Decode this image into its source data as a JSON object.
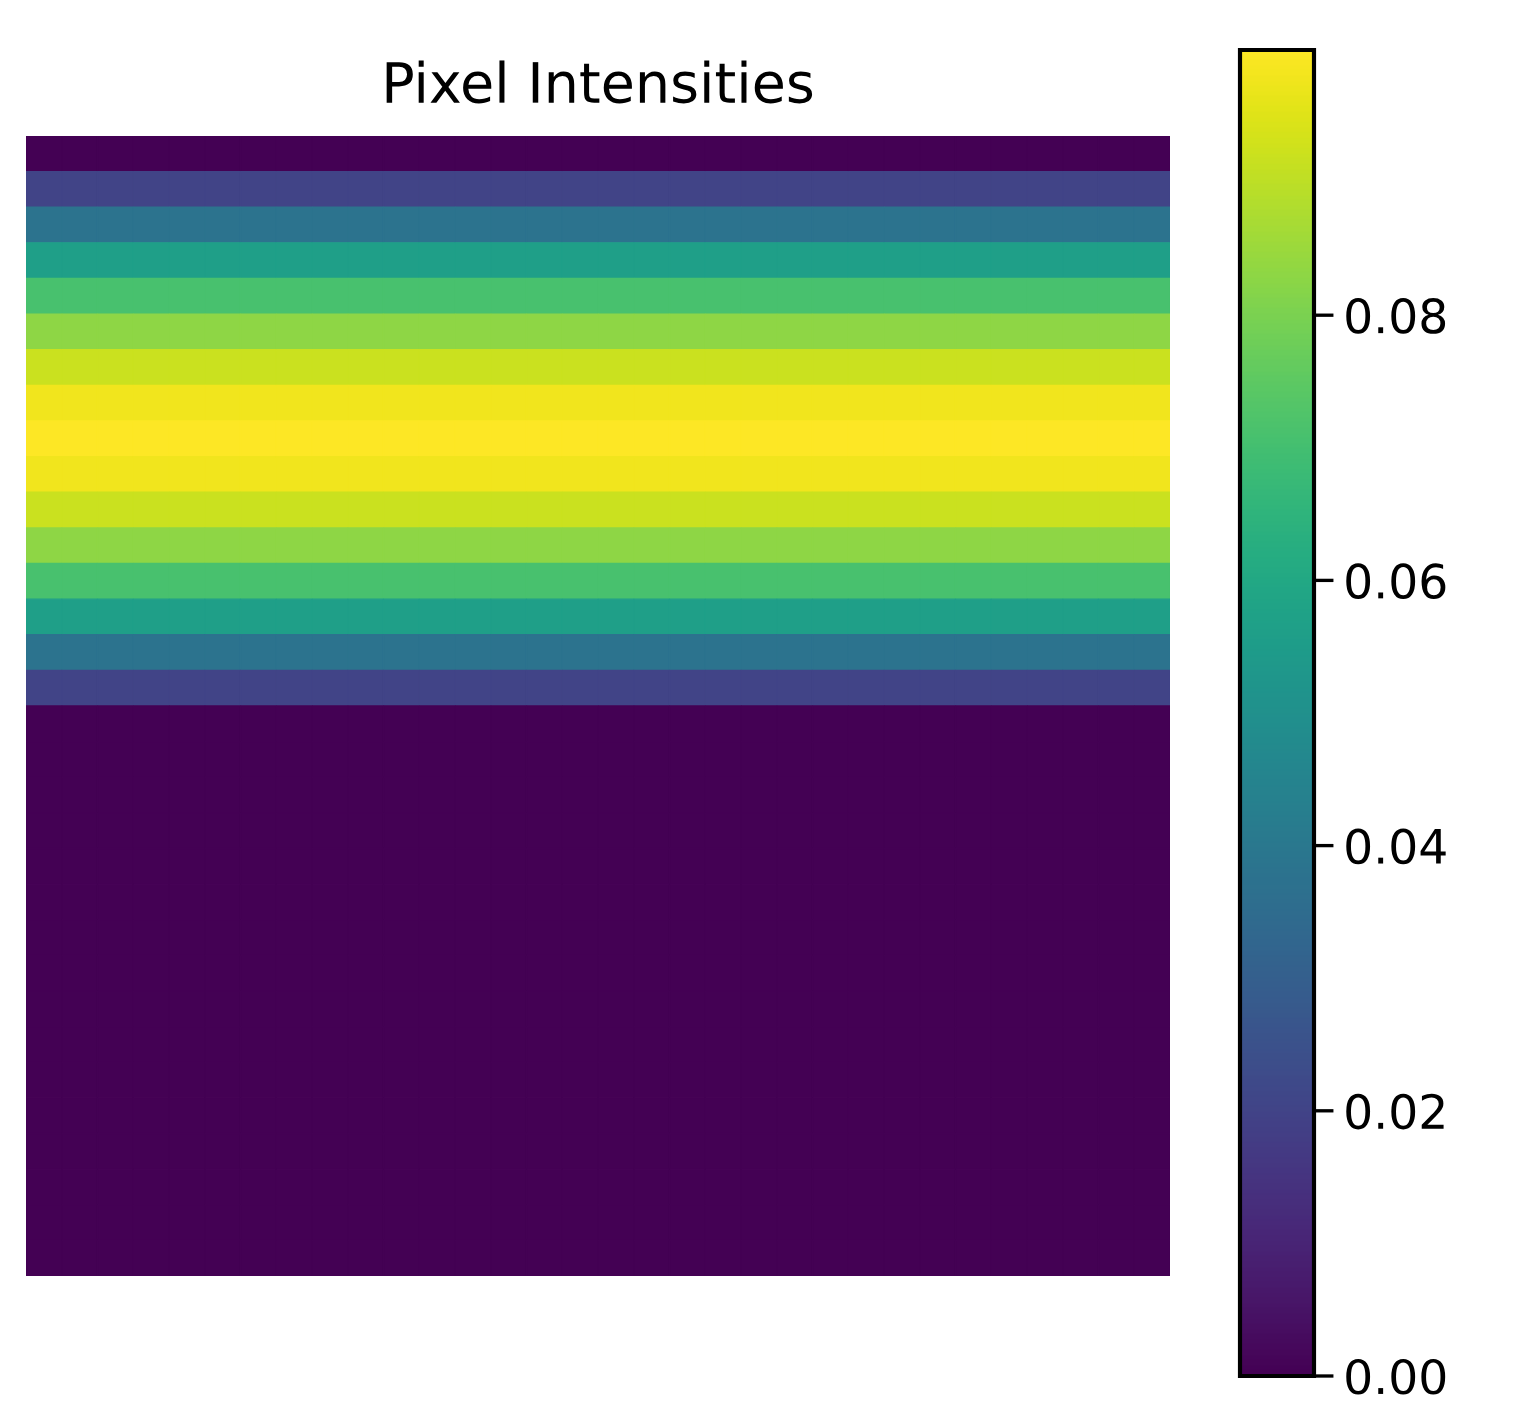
{
  "chart_data": {
    "type": "heatmap",
    "title": "Pixel Intensities",
    "categories": [
      null,
      null,
      null,
      null,
      null,
      null,
      null,
      null,
      null,
      null,
      null,
      null,
      null,
      null,
      null,
      null,
      null,
      null,
      null,
      null,
      null,
      null,
      null,
      null,
      null,
      null,
      null,
      null,
      null,
      null,
      null,
      null
    ],
    "y_categories": [
      null,
      null,
      null,
      null,
      null,
      null,
      null,
      null,
      null,
      null,
      null,
      null,
      null,
      null,
      null,
      null,
      null,
      null,
      null,
      null,
      null,
      null,
      null,
      null,
      null,
      null,
      null,
      null,
      null,
      null,
      null,
      null
    ],
    "cells": [
      [
        0,
        0,
        0,
        0,
        0,
        0,
        0,
        0,
        0,
        0,
        0,
        0,
        0,
        0,
        0,
        0,
        0,
        0,
        0,
        0,
        0,
        0,
        0,
        0,
        0,
        0,
        0,
        0,
        0,
        0,
        0,
        0
      ],
      [
        0.02,
        0.02,
        0.02,
        0.02,
        0.02,
        0.02,
        0.02,
        0.02,
        0.02,
        0.02,
        0.02,
        0.02,
        0.02,
        0.02,
        0.02,
        0.02,
        0.02,
        0.02,
        0.02,
        0.02,
        0.02,
        0.02,
        0.02,
        0.02,
        0.02,
        0.02,
        0.02,
        0.02,
        0.02,
        0.02,
        0.02,
        0.02
      ],
      [
        0.038,
        0.038,
        0.038,
        0.038,
        0.038,
        0.038,
        0.038,
        0.038,
        0.038,
        0.038,
        0.038,
        0.038,
        0.038,
        0.038,
        0.038,
        0.038,
        0.038,
        0.038,
        0.038,
        0.038,
        0.038,
        0.038,
        0.038,
        0.038,
        0.038,
        0.038,
        0.038,
        0.038,
        0.038,
        0.038,
        0.038,
        0.038
      ],
      [
        0.056,
        0.056,
        0.056,
        0.056,
        0.056,
        0.056,
        0.056,
        0.056,
        0.056,
        0.056,
        0.056,
        0.056,
        0.056,
        0.056,
        0.056,
        0.056,
        0.056,
        0.056,
        0.056,
        0.056,
        0.056,
        0.056,
        0.056,
        0.056,
        0.056,
        0.056,
        0.056,
        0.056,
        0.056,
        0.056,
        0.056,
        0.056
      ],
      [
        0.071,
        0.071,
        0.071,
        0.071,
        0.071,
        0.071,
        0.071,
        0.071,
        0.071,
        0.071,
        0.071,
        0.071,
        0.071,
        0.071,
        0.071,
        0.071,
        0.071,
        0.071,
        0.071,
        0.071,
        0.071,
        0.071,
        0.071,
        0.071,
        0.071,
        0.071,
        0.071,
        0.071,
        0.071,
        0.071,
        0.071,
        0.071
      ],
      [
        0.083,
        0.083,
        0.083,
        0.083,
        0.083,
        0.083,
        0.083,
        0.083,
        0.083,
        0.083,
        0.083,
        0.083,
        0.083,
        0.083,
        0.083,
        0.083,
        0.083,
        0.083,
        0.083,
        0.083,
        0.083,
        0.083,
        0.083,
        0.083,
        0.083,
        0.083,
        0.083,
        0.083,
        0.083,
        0.083,
        0.083,
        0.083
      ],
      [
        0.092,
        0.092,
        0.092,
        0.092,
        0.092,
        0.092,
        0.092,
        0.092,
        0.092,
        0.092,
        0.092,
        0.092,
        0.092,
        0.092,
        0.092,
        0.092,
        0.092,
        0.092,
        0.092,
        0.092,
        0.092,
        0.092,
        0.092,
        0.092,
        0.092,
        0.092,
        0.092,
        0.092,
        0.092,
        0.092,
        0.092,
        0.092
      ],
      [
        0.098,
        0.098,
        0.098,
        0.098,
        0.098,
        0.098,
        0.098,
        0.098,
        0.098,
        0.098,
        0.098,
        0.098,
        0.098,
        0.098,
        0.098,
        0.098,
        0.098,
        0.098,
        0.098,
        0.098,
        0.098,
        0.098,
        0.098,
        0.098,
        0.098,
        0.098,
        0.098,
        0.098,
        0.098,
        0.098,
        0.098,
        0.098
      ],
      [
        0.1,
        0.1,
        0.1,
        0.1,
        0.1,
        0.1,
        0.1,
        0.1,
        0.1,
        0.1,
        0.1,
        0.1,
        0.1,
        0.1,
        0.1,
        0.1,
        0.1,
        0.1,
        0.1,
        0.1,
        0.1,
        0.1,
        0.1,
        0.1,
        0.1,
        0.1,
        0.1,
        0.1,
        0.1,
        0.1,
        0.1,
        0.1
      ],
      [
        0.098,
        0.098,
        0.098,
        0.098,
        0.098,
        0.098,
        0.098,
        0.098,
        0.098,
        0.098,
        0.098,
        0.098,
        0.098,
        0.098,
        0.098,
        0.098,
        0.098,
        0.098,
        0.098,
        0.098,
        0.098,
        0.098,
        0.098,
        0.098,
        0.098,
        0.098,
        0.098,
        0.098,
        0.098,
        0.098,
        0.098,
        0.098
      ],
      [
        0.092,
        0.092,
        0.092,
        0.092,
        0.092,
        0.092,
        0.092,
        0.092,
        0.092,
        0.092,
        0.092,
        0.092,
        0.092,
        0.092,
        0.092,
        0.092,
        0.092,
        0.092,
        0.092,
        0.092,
        0.092,
        0.092,
        0.092,
        0.092,
        0.092,
        0.092,
        0.092,
        0.092,
        0.092,
        0.092,
        0.092,
        0.092
      ],
      [
        0.083,
        0.083,
        0.083,
        0.083,
        0.083,
        0.083,
        0.083,
        0.083,
        0.083,
        0.083,
        0.083,
        0.083,
        0.083,
        0.083,
        0.083,
        0.083,
        0.083,
        0.083,
        0.083,
        0.083,
        0.083,
        0.083,
        0.083,
        0.083,
        0.083,
        0.083,
        0.083,
        0.083,
        0.083,
        0.083,
        0.083,
        0.083
      ],
      [
        0.071,
        0.071,
        0.071,
        0.071,
        0.071,
        0.071,
        0.071,
        0.071,
        0.071,
        0.071,
        0.071,
        0.071,
        0.071,
        0.071,
        0.071,
        0.071,
        0.071,
        0.071,
        0.071,
        0.071,
        0.071,
        0.071,
        0.071,
        0.071,
        0.071,
        0.071,
        0.071,
        0.071,
        0.071,
        0.071,
        0.071,
        0.071
      ],
      [
        0.056,
        0.056,
        0.056,
        0.056,
        0.056,
        0.056,
        0.056,
        0.056,
        0.056,
        0.056,
        0.056,
        0.056,
        0.056,
        0.056,
        0.056,
        0.056,
        0.056,
        0.056,
        0.056,
        0.056,
        0.056,
        0.056,
        0.056,
        0.056,
        0.056,
        0.056,
        0.056,
        0.056,
        0.056,
        0.056,
        0.056,
        0.056
      ],
      [
        0.038,
        0.038,
        0.038,
        0.038,
        0.038,
        0.038,
        0.038,
        0.038,
        0.038,
        0.038,
        0.038,
        0.038,
        0.038,
        0.038,
        0.038,
        0.038,
        0.038,
        0.038,
        0.038,
        0.038,
        0.038,
        0.038,
        0.038,
        0.038,
        0.038,
        0.038,
        0.038,
        0.038,
        0.038,
        0.038,
        0.038,
        0.038
      ],
      [
        0.02,
        0.02,
        0.02,
        0.02,
        0.02,
        0.02,
        0.02,
        0.02,
        0.02,
        0.02,
        0.02,
        0.02,
        0.02,
        0.02,
        0.02,
        0.02,
        0.02,
        0.02,
        0.02,
        0.02,
        0.02,
        0.02,
        0.02,
        0.02,
        0.02,
        0.02,
        0.02,
        0.02,
        0.02,
        0.02,
        0.02,
        0.02
      ],
      [
        0,
        0,
        0,
        0,
        0,
        0,
        0,
        0,
        0,
        0,
        0,
        0,
        0,
        0,
        0,
        0,
        0,
        0,
        0,
        0,
        0,
        0,
        0,
        0,
        0,
        0,
        0,
        0,
        0,
        0,
        0,
        0
      ],
      [
        0,
        0,
        0,
        0,
        0,
        0,
        0,
        0,
        0,
        0,
        0,
        0,
        0,
        0,
        0,
        0,
        0,
        0,
        0,
        0,
        0,
        0,
        0,
        0,
        0,
        0,
        0,
        0,
        0,
        0,
        0,
        0
      ],
      [
        0,
        0,
        0,
        0,
        0,
        0,
        0,
        0,
        0,
        0,
        0,
        0,
        0,
        0,
        0,
        0,
        0,
        0,
        0,
        0,
        0,
        0,
        0,
        0,
        0,
        0,
        0,
        0,
        0,
        0,
        0,
        0
      ],
      [
        0,
        0,
        0,
        0,
        0,
        0,
        0,
        0,
        0,
        0,
        0,
        0,
        0,
        0,
        0,
        0,
        0,
        0,
        0,
        0,
        0,
        0,
        0,
        0,
        0,
        0,
        0,
        0,
        0,
        0,
        0,
        0
      ],
      [
        0,
        0,
        0,
        0,
        0,
        0,
        0,
        0,
        0,
        0,
        0,
        0,
        0,
        0,
        0,
        0,
        0,
        0,
        0,
        0,
        0,
        0,
        0,
        0,
        0,
        0,
        0,
        0,
        0,
        0,
        0,
        0
      ],
      [
        0,
        0,
        0,
        0,
        0,
        0,
        0,
        0,
        0,
        0,
        0,
        0,
        0,
        0,
        0,
        0,
        0,
        0,
        0,
        0,
        0,
        0,
        0,
        0,
        0,
        0,
        0,
        0,
        0,
        0,
        0,
        0
      ],
      [
        0,
        0,
        0,
        0,
        0,
        0,
        0,
        0,
        0,
        0,
        0,
        0,
        0,
        0,
        0,
        0,
        0,
        0,
        0,
        0,
        0,
        0,
        0,
        0,
        0,
        0,
        0,
        0,
        0,
        0,
        0,
        0
      ],
      [
        0,
        0,
        0,
        0,
        0,
        0,
        0,
        0,
        0,
        0,
        0,
        0,
        0,
        0,
        0,
        0,
        0,
        0,
        0,
        0,
        0,
        0,
        0,
        0,
        0,
        0,
        0,
        0,
        0,
        0,
        0,
        0
      ],
      [
        0,
        0,
        0,
        0,
        0,
        0,
        0,
        0,
        0,
        0,
        0,
        0,
        0,
        0,
        0,
        0,
        0,
        0,
        0,
        0,
        0,
        0,
        0,
        0,
        0,
        0,
        0,
        0,
        0,
        0,
        0,
        0
      ],
      [
        0,
        0,
        0,
        0,
        0,
        0,
        0,
        0,
        0,
        0,
        0,
        0,
        0,
        0,
        0,
        0,
        0,
        0,
        0,
        0,
        0,
        0,
        0,
        0,
        0,
        0,
        0,
        0,
        0,
        0,
        0,
        0
      ],
      [
        0,
        0,
        0,
        0,
        0,
        0,
        0,
        0,
        0,
        0,
        0,
        0,
        0,
        0,
        0,
        0,
        0,
        0,
        0,
        0,
        0,
        0,
        0,
        0,
        0,
        0,
        0,
        0,
        0,
        0,
        0,
        0
      ],
      [
        0,
        0,
        0,
        0,
        0,
        0,
        0,
        0,
        0,
        0,
        0,
        0,
        0,
        0,
        0,
        0,
        0,
        0,
        0,
        0,
        0,
        0,
        0,
        0,
        0,
        0,
        0,
        0,
        0,
        0,
        0,
        0
      ],
      [
        0,
        0,
        0,
        0,
        0,
        0,
        0,
        0,
        0,
        0,
        0,
        0,
        0,
        0,
        0,
        0,
        0,
        0,
        0,
        0,
        0,
        0,
        0,
        0,
        0,
        0,
        0,
        0,
        0,
        0,
        0,
        0
      ],
      [
        0,
        0,
        0,
        0,
        0,
        0,
        0,
        0,
        0,
        0,
        0,
        0,
        0,
        0,
        0,
        0,
        0,
        0,
        0,
        0,
        0,
        0,
        0,
        0,
        0,
        0,
        0,
        0,
        0,
        0,
        0,
        0
      ],
      [
        0,
        0,
        0,
        0,
        0,
        0,
        0,
        0,
        0,
        0,
        0,
        0,
        0,
        0,
        0,
        0,
        0,
        0,
        0,
        0,
        0,
        0,
        0,
        0,
        0,
        0,
        0,
        0,
        0,
        0,
        0,
        0
      ],
      [
        0,
        0,
        0,
        0,
        0,
        0,
        0,
        0,
        0,
        0,
        0,
        0,
        0,
        0,
        0,
        0,
        0,
        0,
        0,
        0,
        0,
        0,
        0,
        0,
        0,
        0,
        0,
        0,
        0,
        0,
        0,
        0
      ]
    ],
    "clim": [
      0,
      0.1
    ],
    "cticks": [
      {
        "value": 0,
        "label": "0.00"
      },
      {
        "value": 0.02,
        "label": "0.02"
      },
      {
        "value": 0.04,
        "label": "0.04"
      },
      {
        "value": 0.06,
        "label": "0.06"
      },
      {
        "value": 0.08,
        "label": "0.08"
      }
    ],
    "tick_labels": false
  }
}
